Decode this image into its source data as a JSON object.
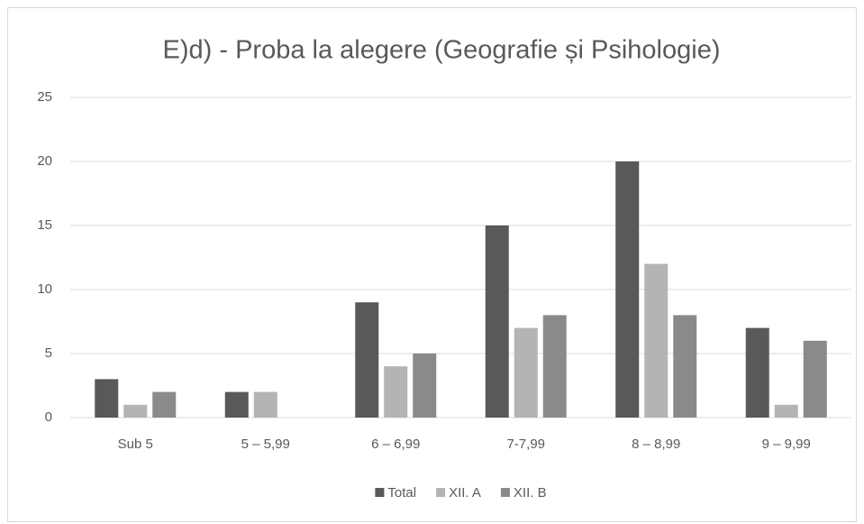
{
  "chart_data": {
    "type": "bar",
    "title": "E)d) - Proba la alegere (Geografie și Psihologie)",
    "categories": [
      "Sub 5",
      "5 – 5,99",
      "6 – 6,99",
      "7-7,99",
      "8 – 8,99",
      "9 – 9,99"
    ],
    "series": [
      {
        "name": "Total",
        "color": "#595959",
        "values": [
          3,
          2,
          9,
          15,
          20,
          7
        ]
      },
      {
        "name": "XII. A",
        "color": "#b4b4b4",
        "values": [
          1,
          2,
          4,
          7,
          12,
          1
        ]
      },
      {
        "name": "XII. B",
        "color": "#8a8a8a",
        "values": [
          2,
          0,
          5,
          8,
          8,
          6
        ]
      }
    ],
    "ylim": [
      0,
      25
    ],
    "yticks": [
      0,
      5,
      10,
      15,
      20,
      25
    ],
    "grid": true,
    "legend": "bottom"
  }
}
